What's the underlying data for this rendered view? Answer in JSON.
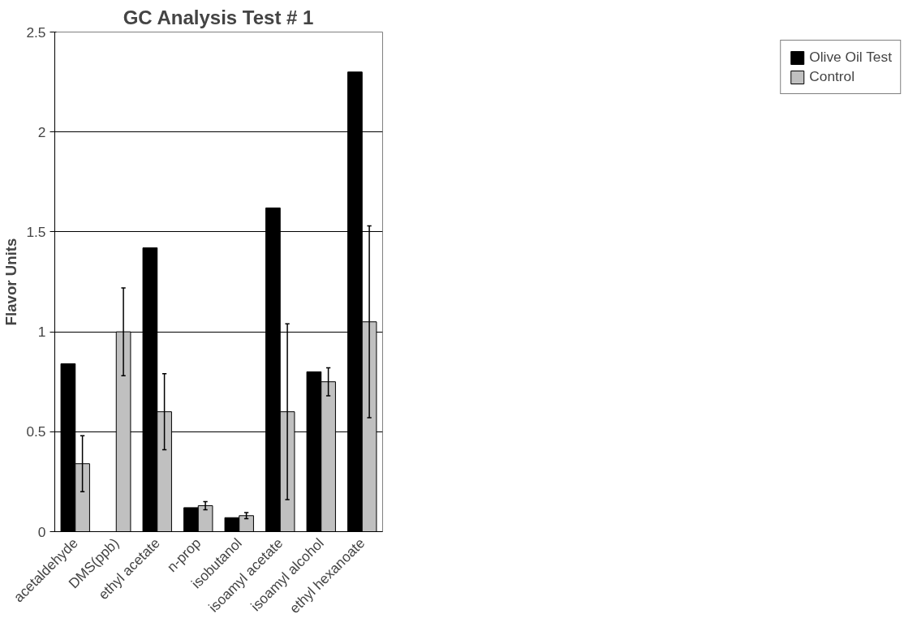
{
  "chart_data": {
    "type": "bar",
    "title": "GC Analysis Test # 1",
    "ylabel": "Flavor Units",
    "categories": [
      "acetaldehyde",
      "DMS(ppb)",
      "ethyl acetate",
      "n-prop",
      "isobutanol",
      "isoamyl acetate",
      "isoamyl alcohol",
      "ethyl hexanoate"
    ],
    "series": [
      {
        "name": "Olive Oil Test",
        "color": "#000000",
        "values": [
          0.84,
          null,
          1.42,
          0.12,
          0.07,
          1.62,
          0.8,
          2.3
        ]
      },
      {
        "name": "Control",
        "color": "#c0c0c0",
        "values": [
          0.34,
          1.0,
          0.6,
          0.13,
          0.08,
          0.6,
          0.75,
          1.05
        ],
        "errors": [
          0.14,
          0.22,
          0.19,
          0.02,
          0.015,
          0.44,
          0.07,
          0.48
        ]
      }
    ],
    "ylim": [
      0,
      2.5
    ],
    "yticks": [
      0,
      0.5,
      1,
      1.5,
      2,
      2.5
    ],
    "grid": "y",
    "legend": "right"
  }
}
